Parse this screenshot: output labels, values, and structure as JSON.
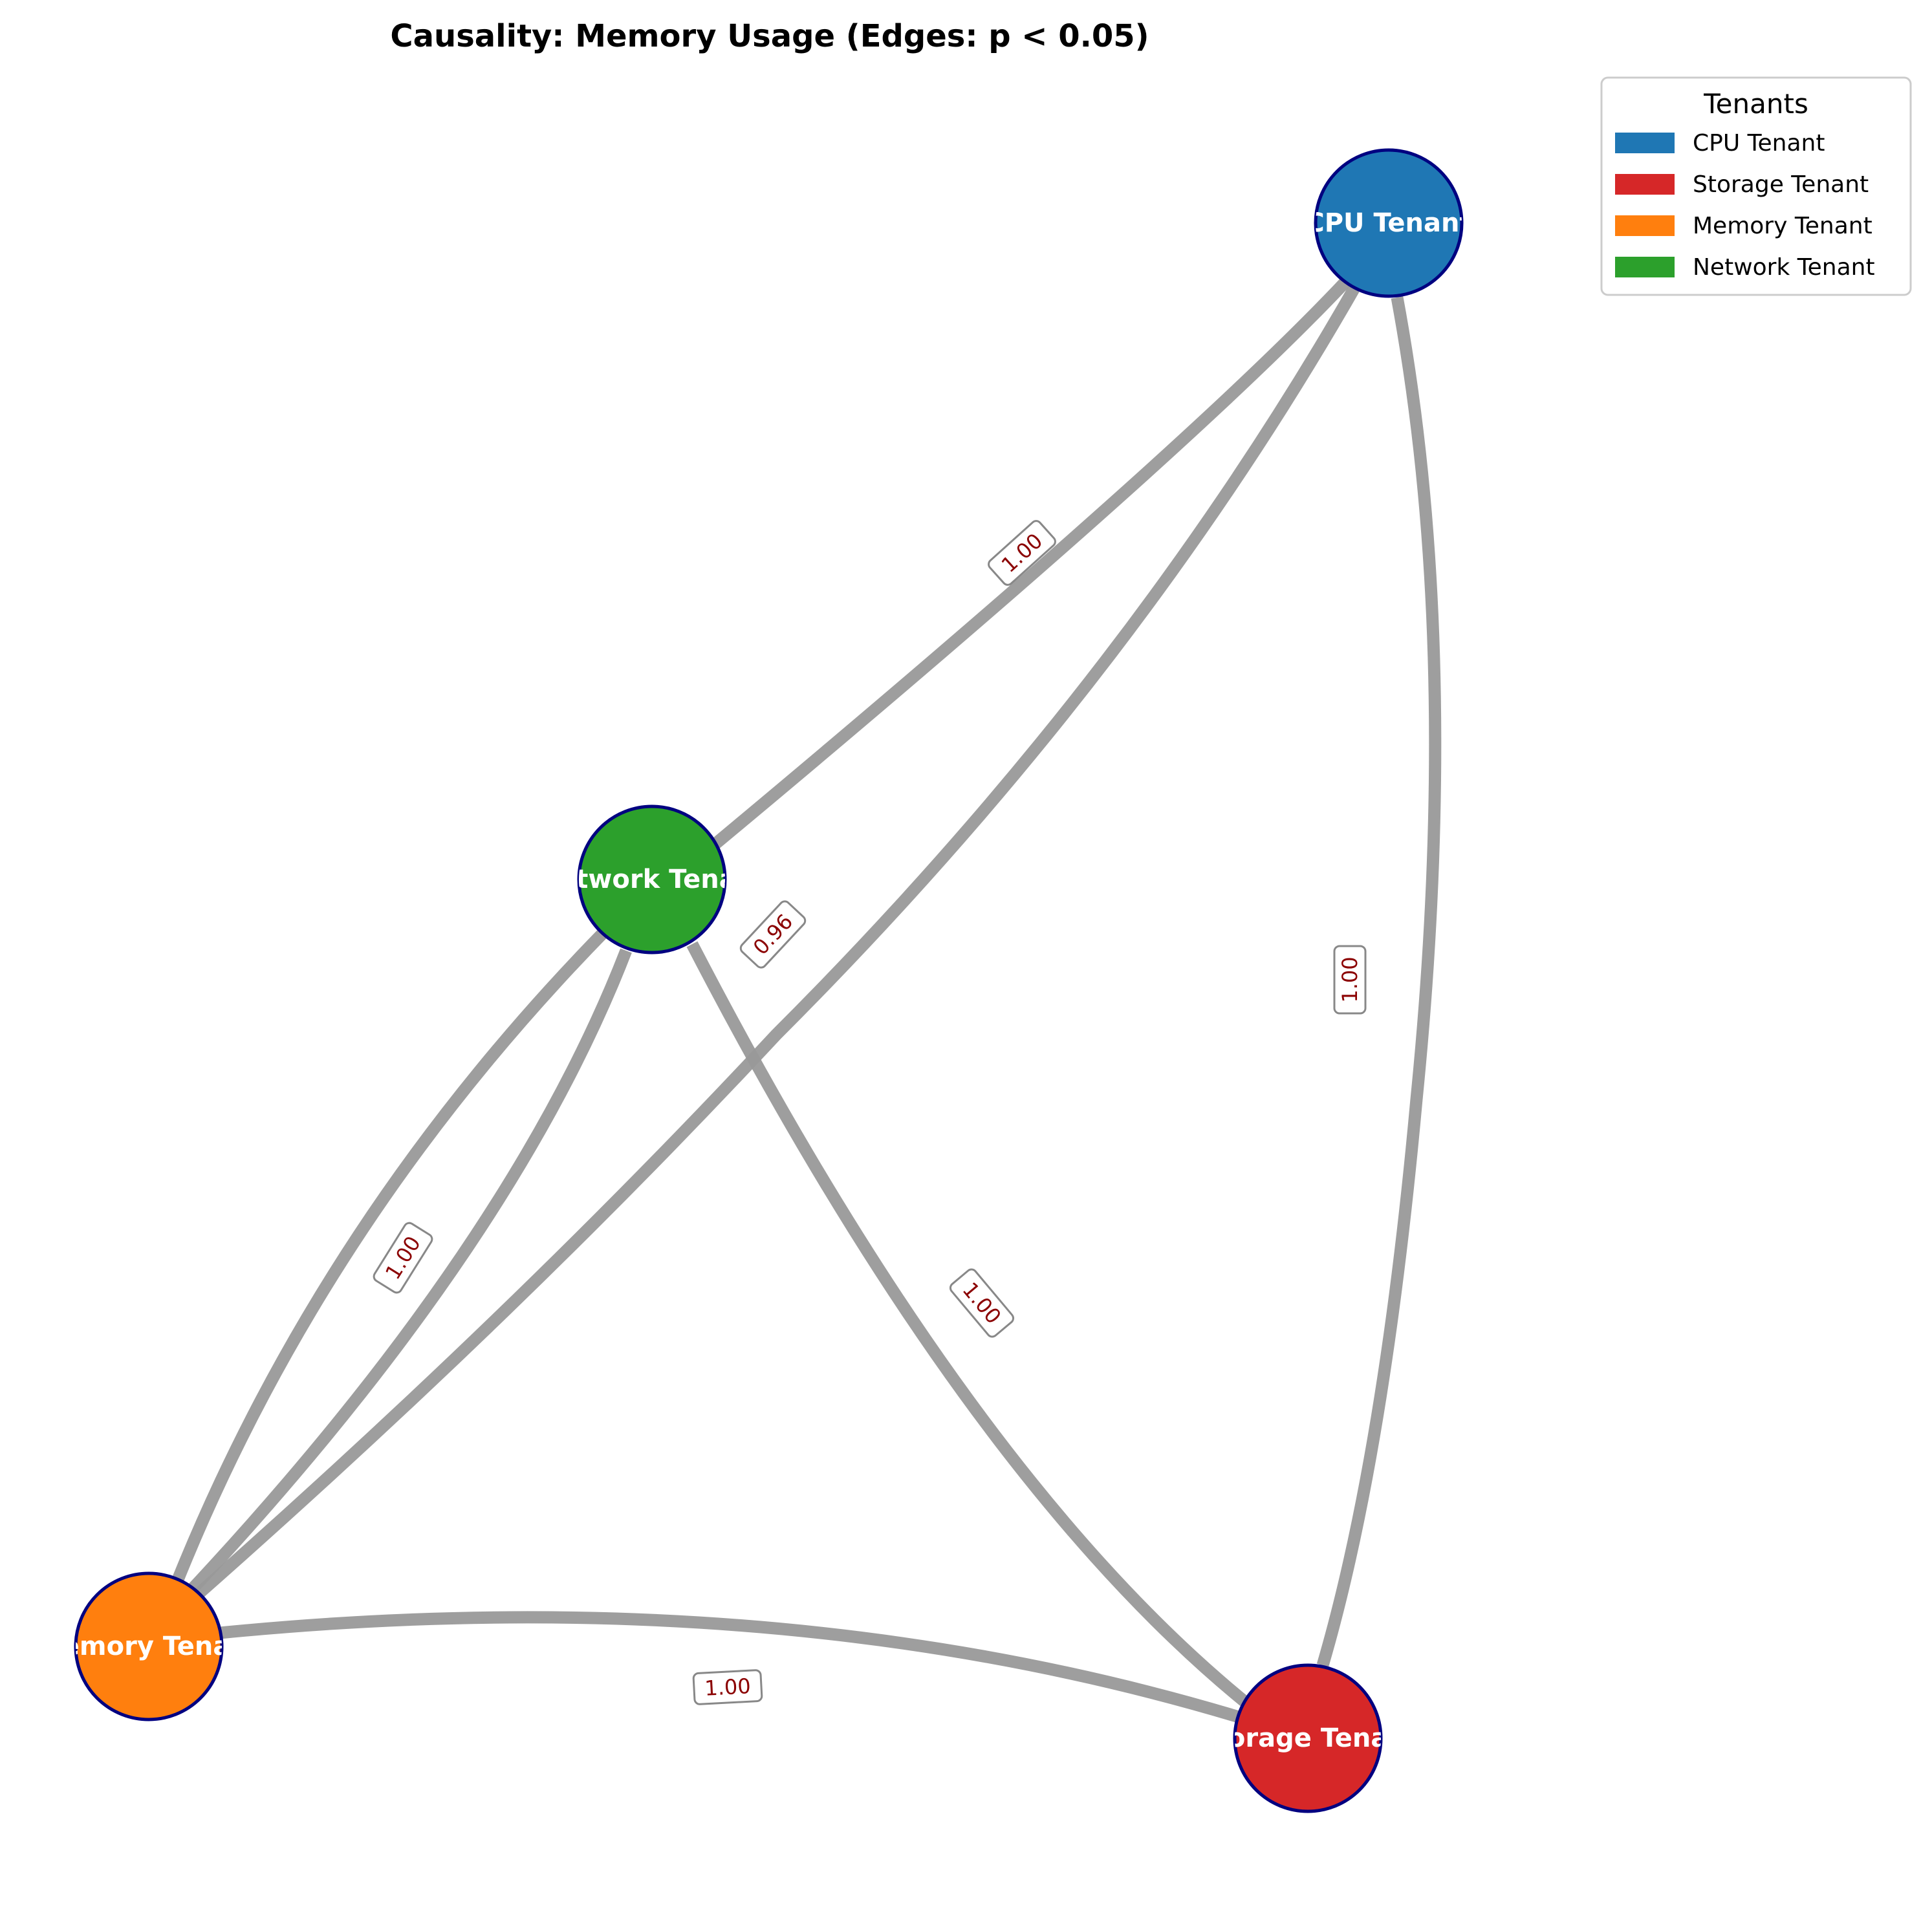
{
  "title": "Causality: Memory Usage (Edges: p < 0.05)",
  "style": {
    "edge_color": "#999999",
    "node_border_color": "#000080",
    "edge_label_color": "#8b0000"
  },
  "nodes": [
    {
      "id": "cpu",
      "label": "CPU Tenant",
      "color": "#1f77b4"
    },
    {
      "id": "network",
      "label": "Network Tenant",
      "color": "#2ca02c"
    },
    {
      "id": "memory",
      "label": "Memory Tenant",
      "color": "#ff7f0e"
    },
    {
      "id": "storage",
      "label": "Storage Tenant",
      "color": "#d62728"
    }
  ],
  "edges": [
    {
      "source": "cpu",
      "target": "network",
      "label": "1.00"
    },
    {
      "source": "cpu",
      "target": "memory",
      "label": "0.96"
    },
    {
      "source": "cpu",
      "target": "storage",
      "label": "1.00"
    },
    {
      "source": "network",
      "target": "memory",
      "label": "1.00"
    },
    {
      "source": "memory",
      "target": "network",
      "label": "1.00"
    },
    {
      "source": "network",
      "target": "storage",
      "label": "1.00"
    },
    {
      "source": "memory",
      "target": "storage",
      "label": "1.00"
    }
  ],
  "legend": {
    "title": "Tenants",
    "items": [
      {
        "label": "CPU Tenant",
        "color": "#1f77b4"
      },
      {
        "label": "Storage Tenant",
        "color": "#d62728"
      },
      {
        "label": "Memory Tenant",
        "color": "#ff7f0e"
      },
      {
        "label": "Network Tenant",
        "color": "#2ca02c"
      }
    ]
  }
}
